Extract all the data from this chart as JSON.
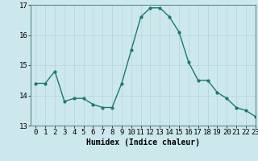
{
  "x": [
    0,
    1,
    2,
    3,
    4,
    5,
    6,
    7,
    8,
    9,
    10,
    11,
    12,
    13,
    14,
    15,
    16,
    17,
    18,
    19,
    20,
    21,
    22,
    23
  ],
  "y": [
    14.4,
    14.4,
    14.8,
    13.8,
    13.9,
    13.9,
    13.7,
    13.6,
    13.6,
    14.4,
    15.5,
    16.6,
    16.9,
    16.9,
    16.6,
    16.1,
    15.1,
    14.5,
    14.5,
    14.1,
    13.9,
    13.6,
    13.5,
    13.3
  ],
  "line_color": "#1a7a6e",
  "marker": "o",
  "marker_size": 2.0,
  "line_width": 1.0,
  "xlabel": "Humidex (Indice chaleur)",
  "ylim": [
    13,
    17
  ],
  "xlim": [
    -0.5,
    23
  ],
  "yticks": [
    13,
    14,
    15,
    16,
    17
  ],
  "xticks": [
    0,
    1,
    2,
    3,
    4,
    5,
    6,
    7,
    8,
    9,
    10,
    11,
    12,
    13,
    14,
    15,
    16,
    17,
    18,
    19,
    20,
    21,
    22,
    23
  ],
  "bg_color": "#cde8ec",
  "grid_color": "#b8d8dc",
  "plot_bg": "#cde8ec",
  "xlabel_fontsize": 7,
  "tick_fontsize": 6.5
}
